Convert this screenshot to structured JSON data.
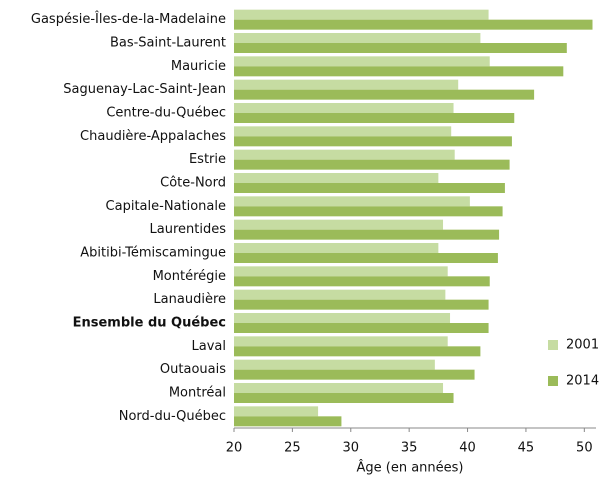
{
  "chart_data": {
    "type": "barh",
    "x_label": "Âge (en années)",
    "categories": [
      "Gaspésie-Îles-de-la-Madelaine",
      "Bas-Saint-Laurent",
      "Mauricie",
      "Saguenay-Lac-Saint-Jean",
      "Centre-du-Québec",
      "Chaudière-Appalaches",
      "Estrie",
      "Côte-Nord",
      "Capitale-Nationale",
      "Laurentides",
      "Abitibi-Témiscamingue",
      "Montérégie",
      "Lanaudière",
      "Ensemble du Québec",
      "Laval",
      "Outaouais",
      "Montréal",
      "Nord-du-Québec"
    ],
    "series": [
      {
        "name": "2001",
        "color": "#c6dca2",
        "values": [
          41.8,
          41.1,
          41.9,
          39.2,
          38.8,
          38.6,
          38.9,
          37.5,
          40.2,
          37.9,
          37.5,
          38.3,
          38.1,
          38.5,
          38.3,
          37.2,
          37.9,
          27.2
        ]
      },
      {
        "name": "2014",
        "color": "#9bbb59",
        "values": [
          50.7,
          48.5,
          48.2,
          45.7,
          44.0,
          43.8,
          43.6,
          43.2,
          43.0,
          42.7,
          42.6,
          41.9,
          41.8,
          41.8,
          41.1,
          40.6,
          38.8,
          29.2
        ]
      }
    ],
    "xlim": [
      20,
      51
    ],
    "xticks": [
      20,
      25,
      30,
      35,
      40,
      45,
      50
    ],
    "grid": false,
    "legend": "right"
  }
}
